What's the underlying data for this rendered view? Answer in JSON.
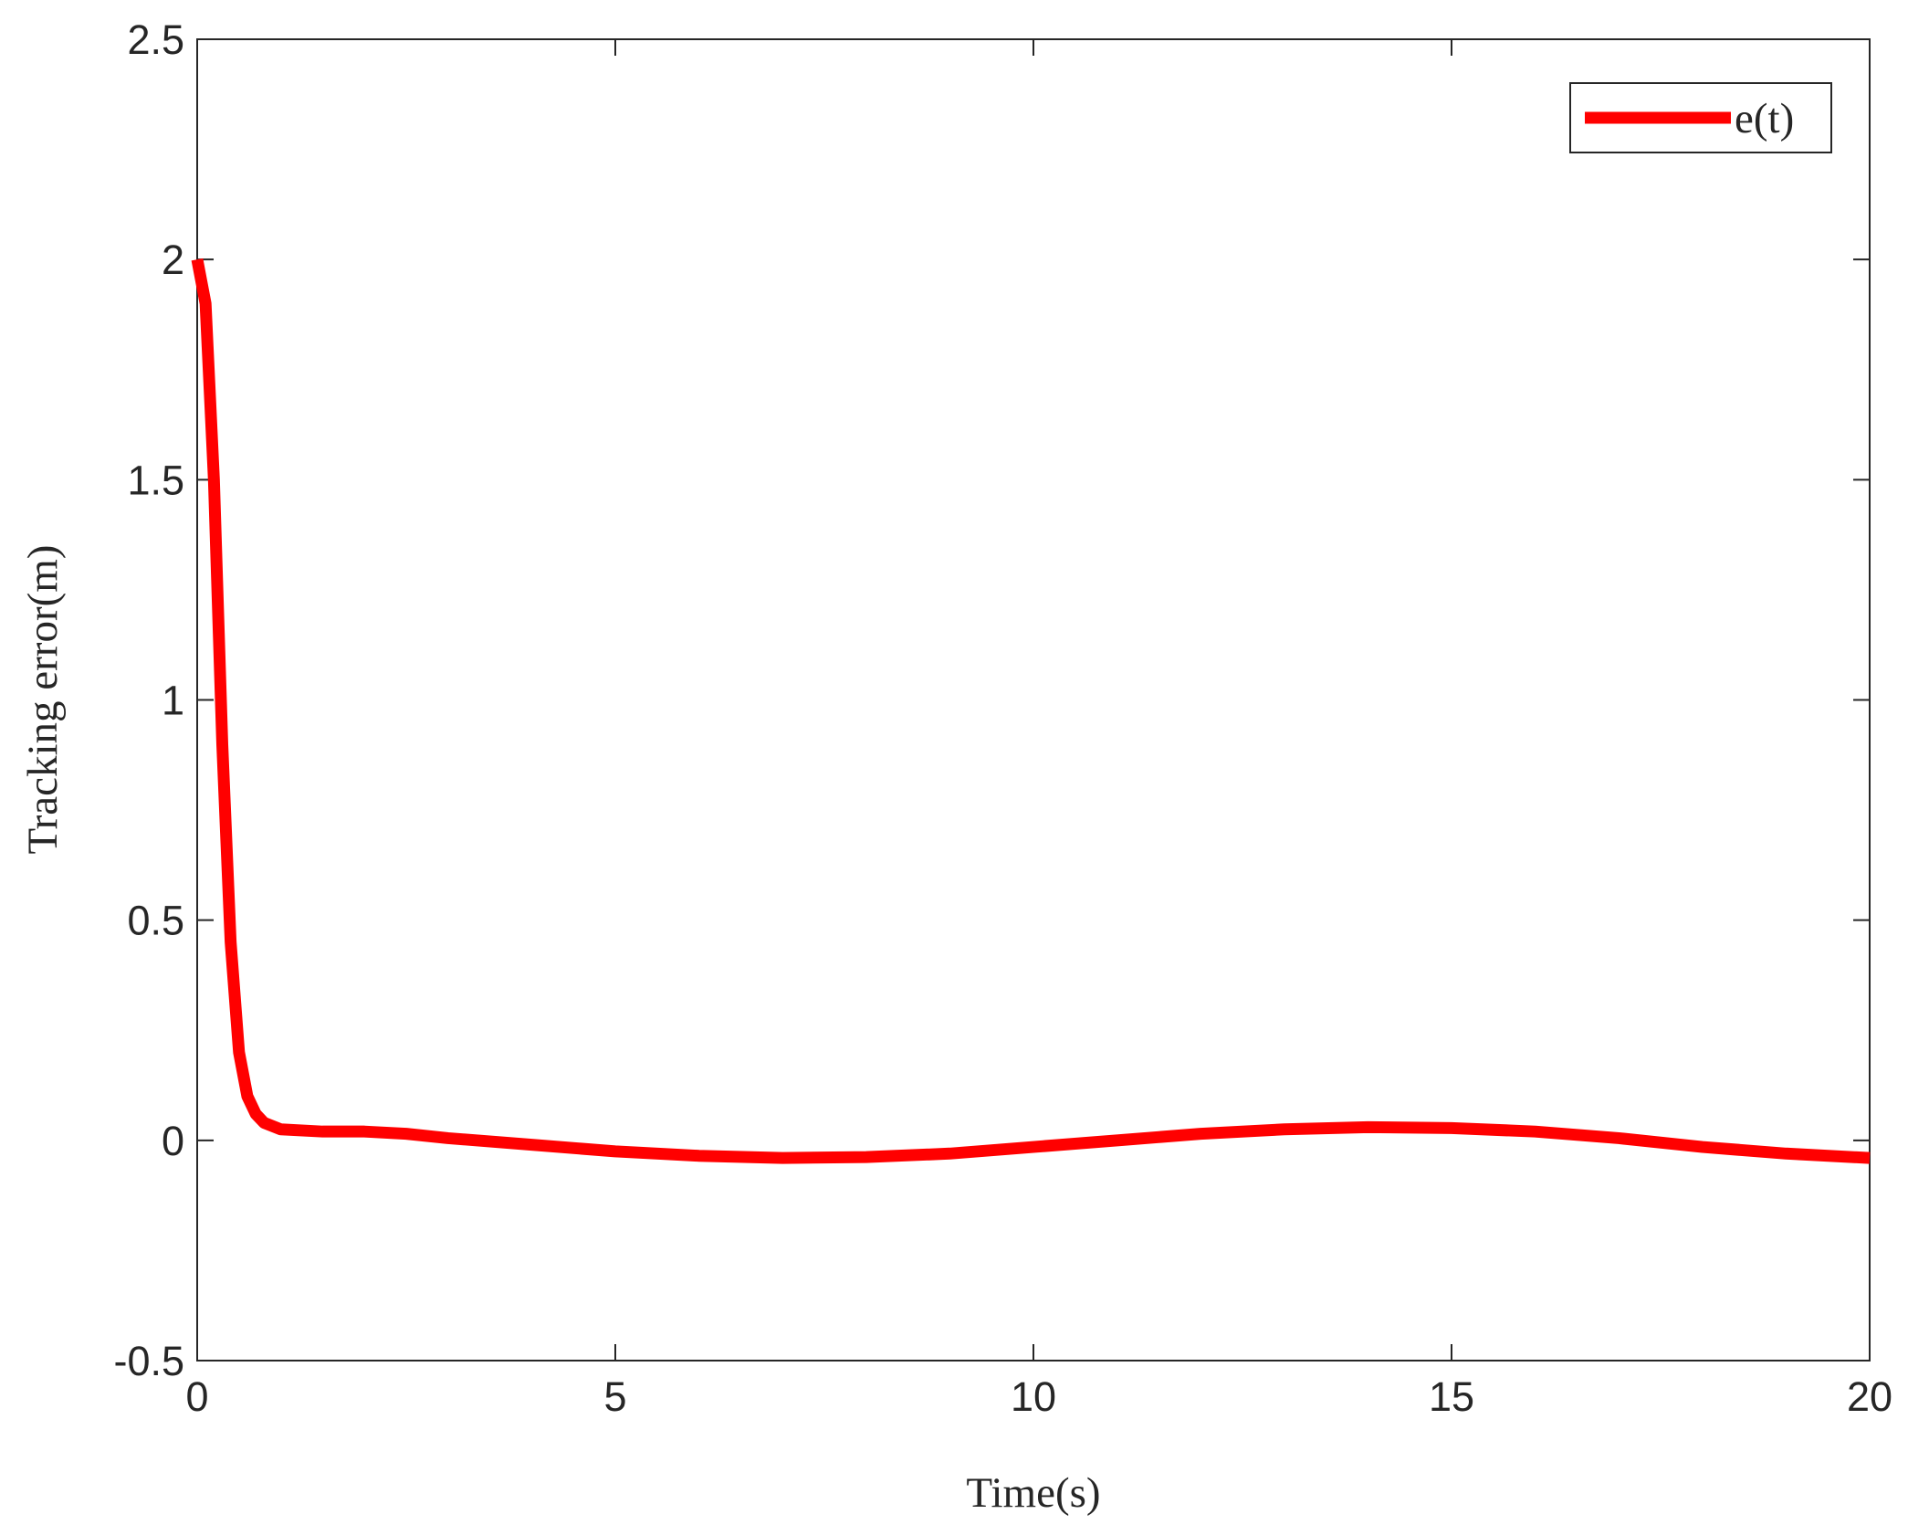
{
  "chart_data": {
    "type": "line",
    "xlabel": "Time(s)",
    "ylabel": "Tracking error(m)",
    "x": [
      0,
      0.1,
      0.2,
      0.3,
      0.4,
      0.5,
      0.6,
      0.7,
      0.8,
      1,
      1.5,
      2,
      2.5,
      3,
      4,
      5,
      6,
      7,
      8,
      9,
      10,
      11,
      12,
      13,
      14,
      15,
      16,
      17,
      18,
      19,
      20
    ],
    "series": [
      {
        "name": "e(t)",
        "color": "#ff0000",
        "values": [
          2.0,
          1.9,
          1.5,
          0.9,
          0.45,
          0.2,
          0.1,
          0.06,
          0.04,
          0.025,
          0.02,
          0.02,
          0.015,
          0.005,
          -0.01,
          -0.025,
          -0.035,
          -0.04,
          -0.038,
          -0.03,
          -0.015,
          0,
          0.015,
          0.025,
          0.03,
          0.028,
          0.02,
          0.005,
          -0.015,
          -0.03,
          -0.04
        ]
      }
    ],
    "xlim": [
      0,
      20
    ],
    "xticks": [
      0,
      5,
      10,
      15,
      20
    ],
    "ylim": [
      -0.5,
      2.5
    ],
    "yticks": [
      -0.5,
      0,
      0.5,
      1,
      1.5,
      2,
      2.5
    ],
    "legend": "upper right",
    "grid": false
  }
}
